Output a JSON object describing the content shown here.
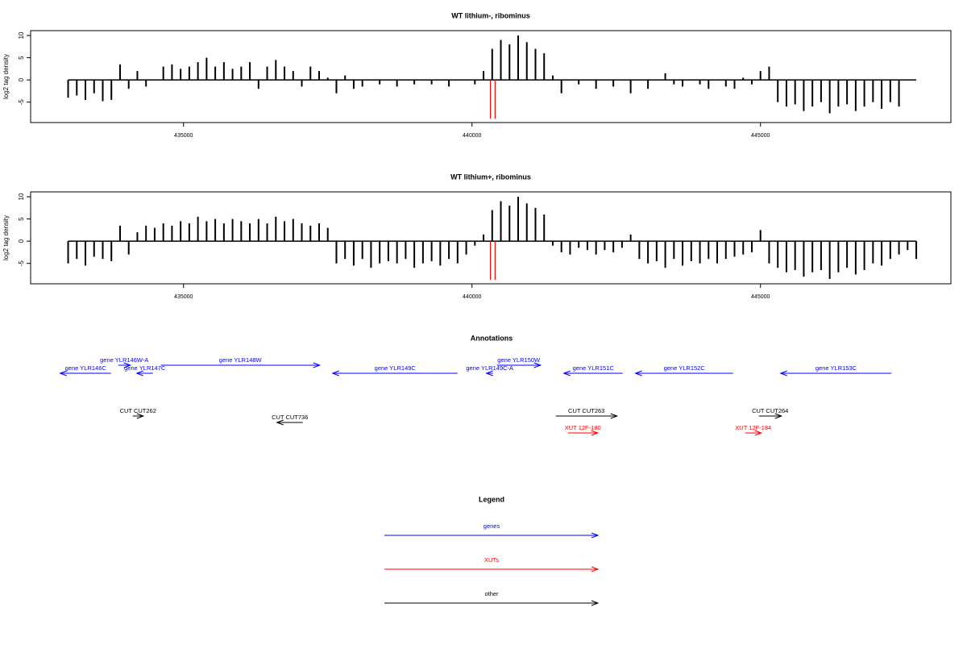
{
  "chart_data": [
    {
      "type": "needle",
      "title": "WT lithium-, ribominus",
      "ylabel": "log2 tag density",
      "color": "#000000",
      "x": [
        433000,
        433150,
        433300,
        433450,
        433600,
        433750,
        433900,
        434050,
        434200,
        434350,
        434500,
        434650,
        434800,
        434950,
        435100,
        435250,
        435400,
        435550,
        435700,
        435850,
        436000,
        436150,
        436300,
        436450,
        436600,
        436750,
        436900,
        437050,
        437200,
        437350,
        437500,
        437650,
        437800,
        437950,
        438100,
        438250,
        438400,
        438550,
        438700,
        438850,
        439000,
        439150,
        439300,
        439450,
        439600,
        439750,
        439900,
        440050,
        440200,
        440350,
        440500,
        440650,
        440800,
        440950,
        441100,
        441250,
        441400,
        441550,
        441700,
        441850,
        442000,
        442150,
        442300,
        442450,
        442600,
        442750,
        442900,
        443050,
        443200,
        443350,
        443500,
        443650,
        443800,
        443950,
        444100,
        444250,
        444400,
        444550,
        444700,
        444850,
        445000,
        445150,
        445300,
        445450,
        445600,
        445750,
        445900,
        446050,
        446200,
        446350,
        446500,
        446650,
        446800,
        446950,
        447100,
        447250,
        447400,
        447550,
        447700
      ],
      "values": [
        -4,
        -3.5,
        -4.5,
        -3,
        -4.8,
        -4.5,
        3.5,
        -2,
        2,
        -1.5,
        0,
        3,
        3.5,
        2.5,
        3,
        4,
        5,
        3,
        4,
        2.5,
        3,
        4,
        -2,
        3,
        4.5,
        3,
        2,
        -1.5,
        3,
        2,
        0.5,
        -3,
        1,
        -2,
        -1.5,
        0,
        -1,
        0,
        -1.5,
        0,
        -1,
        0,
        -1,
        0,
        -1.5,
        0,
        0,
        -1,
        2,
        7,
        9,
        8,
        10,
        8.5,
        7,
        6,
        1,
        -3,
        0,
        -1,
        0,
        -2,
        0,
        -1.5,
        0,
        -3,
        0,
        -2,
        0,
        1.5,
        -1,
        -1.5,
        0,
        -1,
        -2,
        0,
        -1.5,
        -2,
        0.5,
        -1,
        2,
        3,
        -5,
        -6,
        -5.5,
        -7,
        -6,
        -5,
        -7.5,
        -6,
        -5.5,
        -7,
        -6,
        -5,
        -6.5,
        -5,
        -6,
        0,
        0
      ],
      "xlim": [
        432350,
        448300
      ],
      "ylim": [
        -9.6,
        11.1
      ],
      "xticks": [
        435000,
        440000,
        445000
      ],
      "yticks": [
        -5,
        0,
        5,
        10
      ],
      "markers": {
        "color": "#ff0000",
        "x": [
          440320,
          440400
        ],
        "y": [
          0,
          -8.7
        ]
      }
    },
    {
      "type": "needle",
      "title": "WT lithium+, ribominus",
      "ylabel": "log2 tag density",
      "color": "#000000",
      "x": [
        433000,
        433150,
        433300,
        433450,
        433600,
        433750,
        433900,
        434050,
        434200,
        434350,
        434500,
        434650,
        434800,
        434950,
        435100,
        435250,
        435400,
        435550,
        435700,
        435850,
        436000,
        436150,
        436300,
        436450,
        436600,
        436750,
        436900,
        437050,
        437200,
        437350,
        437500,
        437650,
        437800,
        437950,
        438100,
        438250,
        438400,
        438550,
        438700,
        438850,
        439000,
        439150,
        439300,
        439450,
        439600,
        439750,
        439900,
        440050,
        440200,
        440350,
        440500,
        440650,
        440800,
        440950,
        441100,
        441250,
        441400,
        441550,
        441700,
        441850,
        442000,
        442150,
        442300,
        442450,
        442600,
        442750,
        442900,
        443050,
        443200,
        443350,
        443500,
        443650,
        443800,
        443950,
        444100,
        444250,
        444400,
        444550,
        444700,
        444850,
        445000,
        445150,
        445300,
        445450,
        445600,
        445750,
        445900,
        446050,
        446200,
        446350,
        446500,
        446650,
        446800,
        446950,
        447100,
        447250,
        447400,
        447550,
        447700
      ],
      "values": [
        -5,
        -4,
        -5.5,
        -3.5,
        -4,
        -4.5,
        3.5,
        -3,
        2,
        3.5,
        3,
        4,
        3.5,
        4.5,
        4,
        5.5,
        4.5,
        5,
        4,
        5,
        4.5,
        4,
        5,
        4,
        5.5,
        4.5,
        5,
        4,
        3.5,
        4,
        3,
        -5,
        -4,
        -5.5,
        -4,
        -6,
        -5,
        -4.5,
        -5,
        -4,
        -6,
        -5,
        -4.5,
        -5.5,
        -4,
        -5,
        -3,
        -1,
        1.5,
        7,
        9,
        8,
        10,
        8.5,
        7.5,
        6,
        -1,
        -2.5,
        -3,
        -1.5,
        -2,
        -3,
        -2,
        -2.5,
        -1.5,
        1.5,
        -4,
        -5,
        -4.5,
        -6,
        -4,
        -5.5,
        -4.5,
        -5,
        -4,
        -5,
        -4,
        -3.5,
        -3,
        -2.5,
        2.5,
        -5,
        -6,
        -7,
        -6.5,
        -8,
        -7,
        -6.5,
        -8.5,
        -7,
        -6,
        -7.5,
        -6.5,
        -5,
        -5.5,
        -4,
        -3,
        -2,
        -4
      ],
      "xlim": [
        432350,
        448300
      ],
      "ylim": [
        -9.6,
        11.1
      ],
      "xticks": [
        435000,
        440000,
        445000
      ],
      "yticks": [
        -5,
        0,
        5,
        10
      ],
      "markers": {
        "color": "#ff0000",
        "x": [
          440320,
          440400
        ],
        "y": [
          0,
          -8.7
        ]
      }
    }
  ],
  "annotations": {
    "title": "Annotations",
    "features": [
      {
        "label": "gene YLR146C",
        "kind": "gene",
        "color": "#0000ff",
        "start": 433743,
        "end": 432863
      },
      {
        "label": "gene YLR146W-A",
        "kind": "gene",
        "color": "#0000ff",
        "start": 433869,
        "end": 434078
      },
      {
        "label": "gene YLR147C",
        "kind": "gene",
        "color": "#0000ff",
        "start": 434469,
        "end": 434190
      },
      {
        "label": "gene YLR148W",
        "kind": "gene",
        "color": "#0000ff",
        "start": 434609,
        "end": 437360
      },
      {
        "label": "gene YLR149C",
        "kind": "gene",
        "color": "#0000ff",
        "start": 439749,
        "end": 437584
      },
      {
        "label": "gene YLR149C-A",
        "kind": "gene",
        "color": "#0000ff",
        "start": 440363,
        "end": 440251
      },
      {
        "label": "gene YLR150W",
        "kind": "gene",
        "color": "#0000ff",
        "start": 440433,
        "end": 441187
      },
      {
        "label": "gene YLR151C",
        "kind": "gene",
        "color": "#0000ff",
        "start": 442611,
        "end": 441592
      },
      {
        "label": "gene YLR152C",
        "kind": "gene",
        "color": "#0000ff",
        "start": 444525,
        "end": 442834
      },
      {
        "label": "gene YLR153C",
        "kind": "gene",
        "color": "#0000ff",
        "start": 447270,
        "end": 445349
      },
      {
        "label": "CUT CUT262",
        "kind": "cut",
        "color": "#000000",
        "start": 434120,
        "end": 434302
      },
      {
        "label": "CUT CUT736",
        "kind": "cut",
        "color": "#000000",
        "start": 437067,
        "end": 436620
      },
      {
        "label": "CUT CUT263",
        "kind": "cut",
        "color": "#000000",
        "start": 441452,
        "end": 442514
      },
      {
        "label": "CUT CUT264",
        "kind": "cut",
        "color": "#000000",
        "start": 444972,
        "end": 445363
      },
      {
        "label": "XUT 12F-180",
        "kind": "xut",
        "color": "#ff0000",
        "start": 441662,
        "end": 442178
      },
      {
        "label": "XUT 12F-184",
        "kind": "xut",
        "color": "#ff0000",
        "start": 444735,
        "end": 445014
      }
    ]
  },
  "legend": {
    "title": "Legend",
    "items": [
      {
        "label": "genes",
        "color": "#0000ff"
      },
      {
        "label": "XUTs",
        "color": "#ff0000"
      },
      {
        "label": "other",
        "color": "#000000"
      }
    ]
  }
}
